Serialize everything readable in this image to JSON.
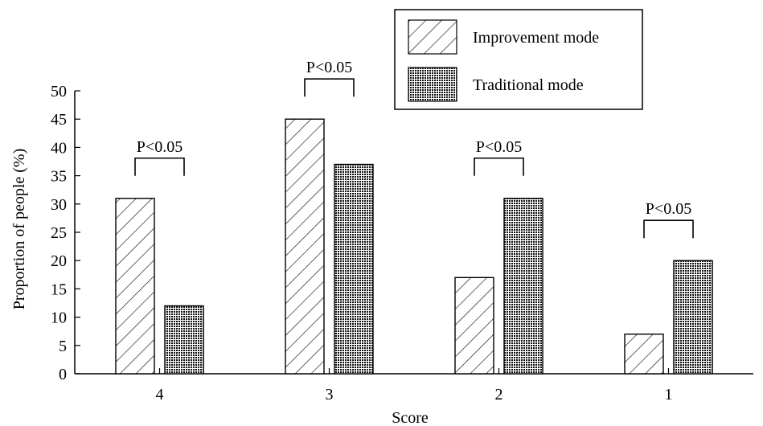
{
  "chart_data": {
    "type": "bar",
    "title": "",
    "xlabel": "Score",
    "ylabel": "Proportion of people (%)",
    "categories": [
      "4",
      "3",
      "2",
      "1"
    ],
    "ylim": [
      0,
      50
    ],
    "yticks": [
      "0",
      "5",
      "10",
      "15",
      "20",
      "25",
      "30",
      "35",
      "40",
      "45",
      "50"
    ],
    "series": [
      {
        "name": "Improvement mode",
        "values": [
          31,
          45,
          17,
          7
        ],
        "pattern": "diagonal-hatch",
        "color": "#000000"
      },
      {
        "name": "Traditional mode",
        "values": [
          12,
          37,
          31,
          20
        ],
        "pattern": "dense-dots",
        "color": "#000000"
      }
    ],
    "annotations": [
      {
        "category": "4",
        "text": "P<0.05"
      },
      {
        "category": "3",
        "text": "P<0.05"
      },
      {
        "category": "2",
        "text": "P<0.05"
      },
      {
        "category": "1",
        "text": "P<0.05"
      }
    ],
    "legend_position": "top-right",
    "grid": false
  }
}
